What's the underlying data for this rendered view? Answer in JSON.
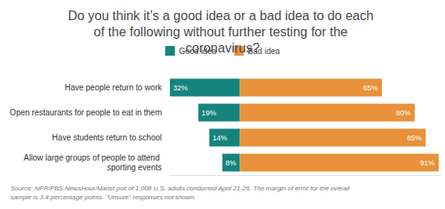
{
  "chart_data": {
    "type": "bar",
    "orientation": "horizontal",
    "title": "Do you think it’s a good idea or a bad idea to do each of the following without further testing for the coronavirus?",
    "categories": [
      "Have people return to work",
      "Open restaurants for people to eat in them",
      "Have students return to school",
      "Allow large groups of people to attend sporting events"
    ],
    "series": [
      {
        "name": "Good idea",
        "color": "#16847e",
        "values": [
          32,
          19,
          14,
          8
        ],
        "value_labels": [
          "32%",
          "19%",
          "14%",
          "8%"
        ]
      },
      {
        "name": "Bad idea",
        "color": "#e8913a",
        "values": [
          65,
          80,
          85,
          91
        ],
        "value_labels": [
          "65%",
          "80%",
          "85%",
          "91%"
        ]
      }
    ],
    "xlim": [
      -32,
      92
    ],
    "grid": false,
    "tick_labels": "y",
    "data_labels": true,
    "legend": "top",
    "annotations": [
      "Source: NPR/PBS NewsHour/Marist poll of 1,008 U.S. adults conducted April 21-26. The margin of error for the overall sample is 3.4 percentage points. \"Unsure\" responses not shown."
    ]
  }
}
